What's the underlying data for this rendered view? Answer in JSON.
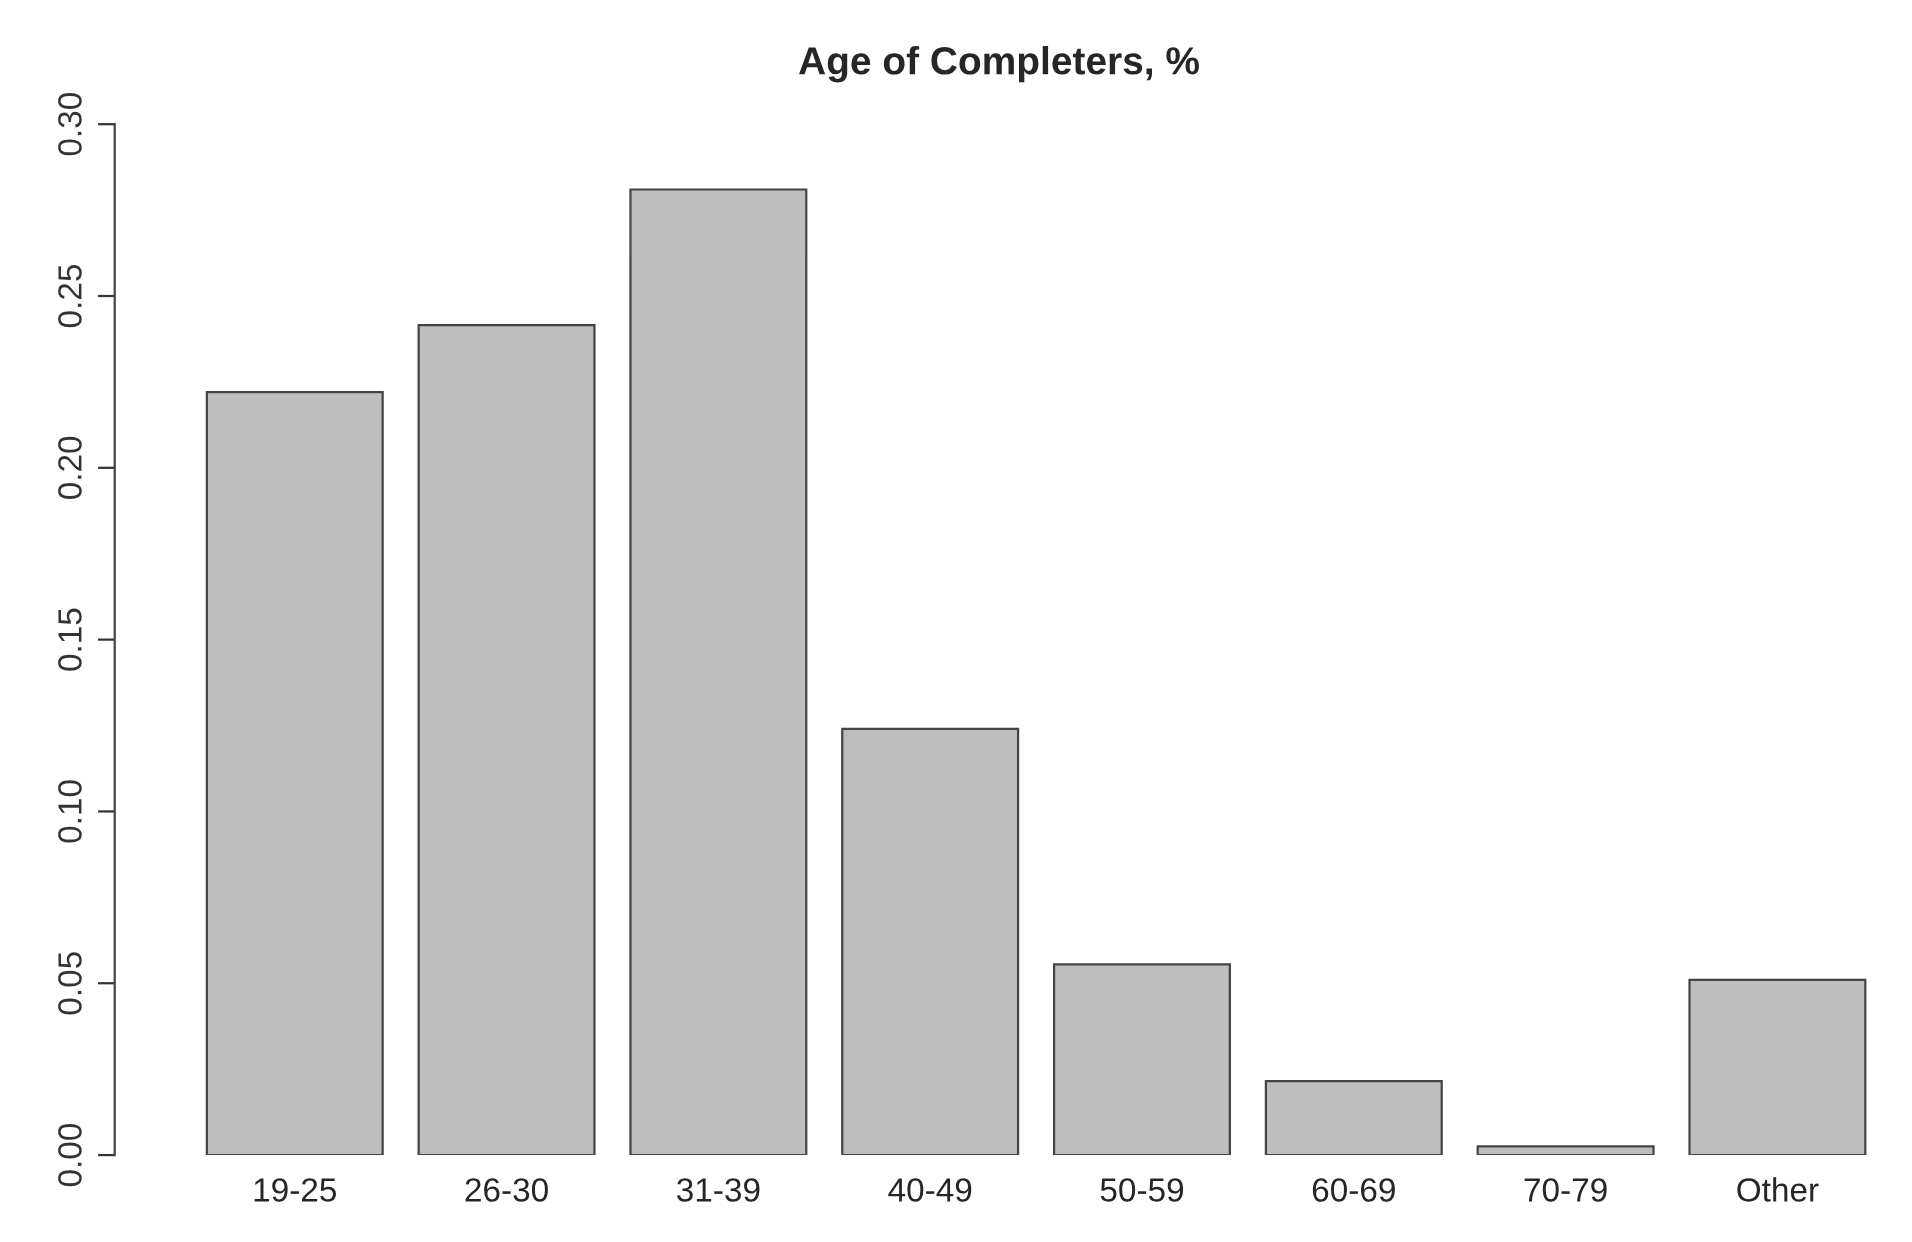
{
  "chart_data": {
    "type": "bar",
    "title": "Age of Completers, %",
    "categories": [
      "19-25",
      "26-30",
      "31-39",
      "40-49",
      "50-59",
      "60-69",
      "70-79",
      "Other"
    ],
    "values": [
      0.222,
      0.2415,
      0.281,
      0.124,
      0.0555,
      0.0215,
      0.0025,
      0.051
    ],
    "color": "#bebebe",
    "ylim": [
      0,
      0.3
    ],
    "yticks": [
      {
        "value": 0,
        "label": "0.00"
      },
      {
        "value": 0.05,
        "label": "0.05"
      },
      {
        "value": 0.1,
        "label": "0.10"
      },
      {
        "value": 0.15,
        "label": "0.15"
      },
      {
        "value": 0.2,
        "label": "0.20"
      },
      {
        "value": 0.25,
        "label": "0.25"
      },
      {
        "value": 0.3,
        "label": "0.30"
      }
    ],
    "grid": false,
    "legend": false
  }
}
